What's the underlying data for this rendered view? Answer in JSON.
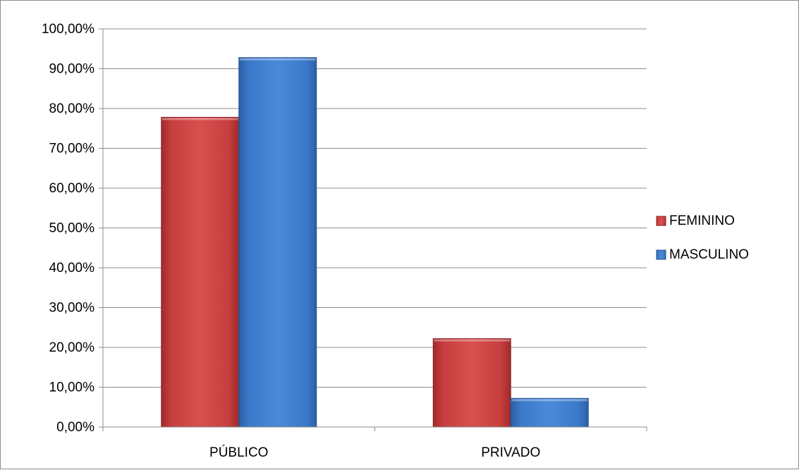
{
  "chart_data": {
    "type": "bar",
    "title": "",
    "xlabel": "",
    "ylabel": "",
    "categories": [
      "PÚBLICO",
      "PRIVADO"
    ],
    "series": [
      {
        "name": "FEMININO",
        "values": [
          0.778,
          0.222
        ],
        "color": "#c0393b"
      },
      {
        "name": "MASCULINO",
        "values": [
          0.928,
          0.072
        ],
        "color": "#3d7fd0"
      }
    ],
    "ylim": [
      0,
      1
    ],
    "yticks": [
      0,
      0.1,
      0.2,
      0.3,
      0.4,
      0.5,
      0.6,
      0.7,
      0.8,
      0.9,
      1.0
    ],
    "ytick_labels": [
      "0,00%",
      "10,00%",
      "20,00%",
      "30,00%",
      "40,00%",
      "50,00%",
      "60,00%",
      "70,00%",
      "80,00%",
      "90,00%",
      "100,00%"
    ],
    "grid": true,
    "legend_position": "right"
  }
}
